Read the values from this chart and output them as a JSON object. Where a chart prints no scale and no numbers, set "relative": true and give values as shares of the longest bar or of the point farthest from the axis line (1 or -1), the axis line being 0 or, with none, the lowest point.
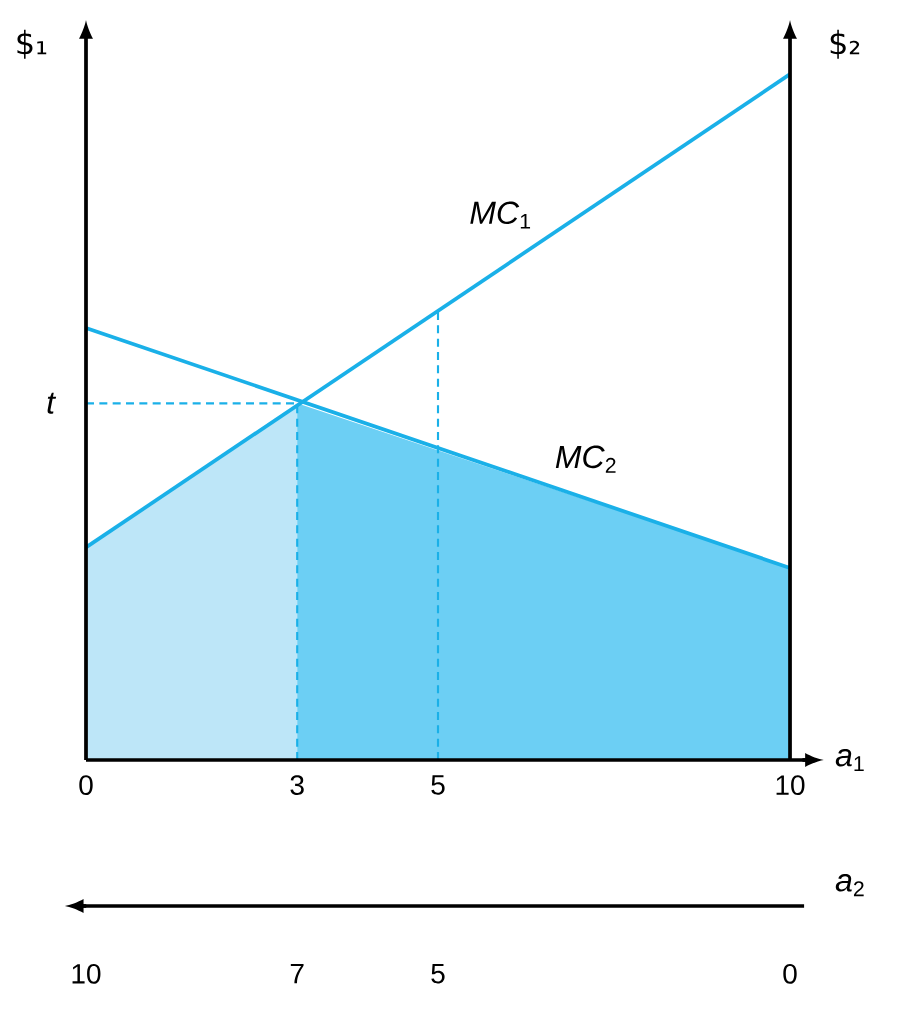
{
  "chart_data": {
    "type": "line",
    "relative": true,
    "ylabel": "$₁",
    "y2label": "$₂",
    "xlabel": "*a*$_{1}$",
    "x2label": "*a*$_{2}$",
    "xlim": [
      0,
      10
    ],
    "xticks": [
      0,
      3,
      5,
      10
    ],
    "x2lim": [
      10,
      0
    ],
    "x2ticks": [
      10,
      7,
      5,
      0
    ],
    "series": [
      {
        "type": "area",
        "color": "#bde6f8",
        "x": [
          0,
          3
        ],
        "values": [
          0.31,
          0.52
        ]
      },
      {
        "type": "area",
        "color": "#6ccff4",
        "x": [
          3,
          10
        ],
        "values": [
          0.52,
          0.28
        ]
      },
      {
        "name": "*MC*$_{1}$",
        "color": "#1ab0e8",
        "x": [
          0,
          10
        ],
        "values": [
          0.31,
          1.0
        ]
      },
      {
        "name": "*MC*$_{2}$",
        "color": "#1ab0e8",
        "x": [
          0,
          10
        ],
        "values": [
          0.63,
          0.28
        ]
      },
      {
        "color": "#1ab0e8",
        "line_style": "dashed",
        "x": [
          0,
          3
        ],
        "values": [
          0.52,
          0.52
        ]
      },
      {
        "color": "#1ab0e8",
        "line_style": "dashed",
        "x": [
          3,
          3
        ],
        "values": [
          0,
          0.52
        ]
      },
      {
        "color": "#1ab0e8",
        "line_style": "dashed",
        "x": [
          5,
          5
        ],
        "values": [
          0,
          0.66
        ]
      }
    ],
    "annotations": [
      {
        "text": "t",
        "x": 0,
        "y": 0.52
      }
    ]
  }
}
